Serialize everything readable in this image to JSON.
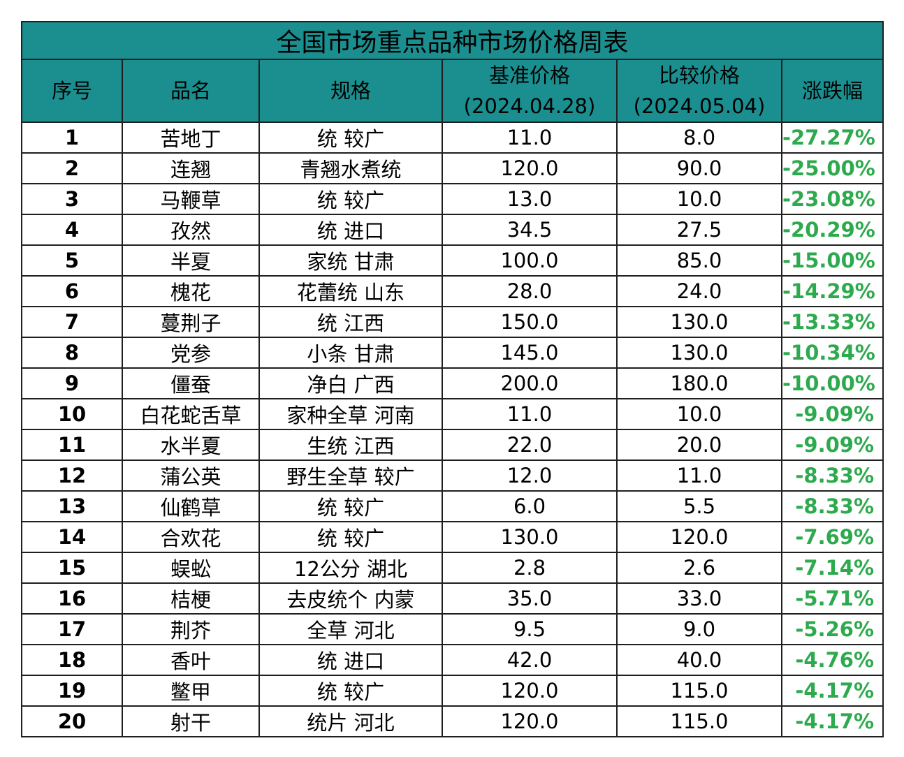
{
  "title": "全国市场重点品种市场价格周表",
  "headers": {
    "index": "序号",
    "name": "品名",
    "spec": "规格",
    "base_price": "基准价格",
    "base_date": "(2024.04.28)",
    "compare_price": "比较价格",
    "compare_date": "(2024.05.04)",
    "change": "涨跌幅"
  },
  "rows": [
    {
      "index": "1",
      "name": "苦地丁",
      "spec": "统 较广",
      "base": "11.0",
      "compare": "8.0",
      "change": "-27.27%"
    },
    {
      "index": "2",
      "name": "连翘",
      "spec": "青翘水煮统",
      "base": "120.0",
      "compare": "90.0",
      "change": "-25.00%"
    },
    {
      "index": "3",
      "name": "马鞭草",
      "spec": "统 较广",
      "base": "13.0",
      "compare": "10.0",
      "change": "-23.08%"
    },
    {
      "index": "4",
      "name": "孜然",
      "spec": "统 进口",
      "base": "34.5",
      "compare": "27.5",
      "change": "-20.29%"
    },
    {
      "index": "5",
      "name": "半夏",
      "spec": "家统 甘肃",
      "base": "100.0",
      "compare": "85.0",
      "change": "-15.00%"
    },
    {
      "index": "6",
      "name": "槐花",
      "spec": "花蕾统 山东",
      "base": "28.0",
      "compare": "24.0",
      "change": "-14.29%"
    },
    {
      "index": "7",
      "name": "蔓荆子",
      "spec": "统 江西",
      "base": "150.0",
      "compare": "130.0",
      "change": "-13.33%"
    },
    {
      "index": "8",
      "name": "党参",
      "spec": "小条 甘肃",
      "base": "145.0",
      "compare": "130.0",
      "change": "-10.34%"
    },
    {
      "index": "9",
      "name": "僵蚕",
      "spec": "净白 广西",
      "base": "200.0",
      "compare": "180.0",
      "change": "-10.00%"
    },
    {
      "index": "10",
      "name": "白花蛇舌草",
      "spec": "家种全草 河南",
      "base": "11.0",
      "compare": "10.0",
      "change": "-9.09%"
    },
    {
      "index": "11",
      "name": "水半夏",
      "spec": "生统 江西",
      "base": "22.0",
      "compare": "20.0",
      "change": "-9.09%"
    },
    {
      "index": "12",
      "name": "蒲公英",
      "spec": "野生全草 较广",
      "base": "12.0",
      "compare": "11.0",
      "change": "-8.33%"
    },
    {
      "index": "13",
      "name": "仙鹤草",
      "spec": "统 较广",
      "base": "6.0",
      "compare": "5.5",
      "change": "-8.33%"
    },
    {
      "index": "14",
      "name": "合欢花",
      "spec": "统 较广",
      "base": "130.0",
      "compare": "120.0",
      "change": "-7.69%"
    },
    {
      "index": "15",
      "name": "蜈蚣",
      "spec": "12公分 湖北",
      "base": "2.8",
      "compare": "2.6",
      "change": "-7.14%"
    },
    {
      "index": "16",
      "name": "桔梗",
      "spec": "去皮统个 内蒙",
      "base": "35.0",
      "compare": "33.0",
      "change": "-5.71%"
    },
    {
      "index": "17",
      "name": "荆芥",
      "spec": "全草 河北",
      "base": "9.5",
      "compare": "9.0",
      "change": "-5.26%"
    },
    {
      "index": "18",
      "name": "香叶",
      "spec": "统 进口",
      "base": "42.0",
      "compare": "40.0",
      "change": "-4.76%"
    },
    {
      "index": "19",
      "name": "鳖甲",
      "spec": "统 较广",
      "base": "120.0",
      "compare": "115.0",
      "change": "-4.17%"
    },
    {
      "index": "20",
      "name": "射干",
      "spec": "统片 河北",
      "base": "120.0",
      "compare": "115.0",
      "change": "-4.17%"
    }
  ],
  "colors": {
    "header_bg": "#1b8f8f",
    "change_text": "#2eaa4e"
  }
}
